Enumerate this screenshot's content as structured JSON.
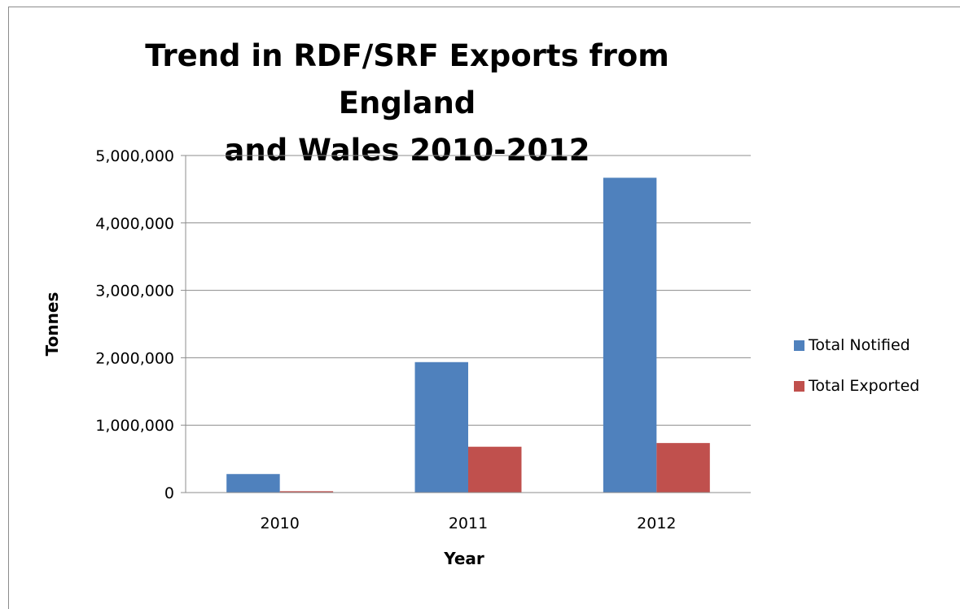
{
  "chart_data": {
    "type": "bar",
    "title": "Trend in RDF/SRF Exports from England and Wales 2010-2012",
    "title_lines": [
      "Trend in RDF/SRF Exports from England",
      "and Wales 2010-2012"
    ],
    "xlabel": "Year",
    "ylabel": "Tonnes",
    "categories": [
      "2010",
      "2011",
      "2012"
    ],
    "series": [
      {
        "name": "Total Notified",
        "color": "#4F81BD",
        "values": [
          275000,
          1935000,
          4670000
        ]
      },
      {
        "name": "Total Exported",
        "color": "#C0504D",
        "values": [
          20000,
          680000,
          735000
        ]
      }
    ],
    "ylim": [
      0,
      5000000
    ],
    "yticks": [
      0,
      1000000,
      2000000,
      3000000,
      4000000,
      5000000
    ],
    "ytick_labels": [
      "0",
      "1,000,000",
      "2,000,000",
      "3,000,000",
      "4,000,000",
      "5,000,000"
    ],
    "grid": true,
    "legend_position": "right"
  }
}
